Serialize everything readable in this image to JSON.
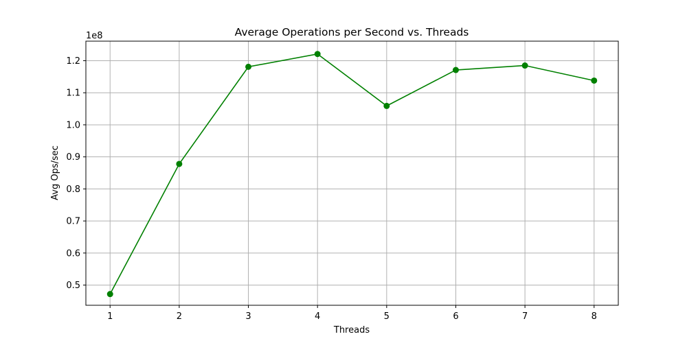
{
  "chart_data": {
    "type": "line",
    "title": "Average Operations per Second vs. Threads",
    "xlabel": "Threads",
    "ylabel": "Avg Ops/sec",
    "y_offset_label": "1e8",
    "x": [
      1,
      2,
      3,
      4,
      5,
      6,
      7,
      8
    ],
    "series": [
      {
        "values": [
          47200000,
          87800000,
          118100000,
          122100000,
          105900000,
          117100000,
          118500000,
          113800000
        ],
        "color": "#008000",
        "marker": "circle"
      }
    ],
    "xlim": [
      0.65,
      8.35
    ],
    "ylim": [
      43700000,
      126100000
    ],
    "x_ticks": [
      1,
      2,
      3,
      4,
      5,
      6,
      7,
      8
    ],
    "y_ticks": [
      50000000,
      60000000,
      70000000,
      80000000,
      90000000,
      100000000,
      110000000,
      120000000
    ],
    "y_tick_labels": [
      "0.5",
      "0.6",
      "0.7",
      "0.8",
      "0.9",
      "1.0",
      "1.1",
      "1.2"
    ],
    "grid": true
  }
}
